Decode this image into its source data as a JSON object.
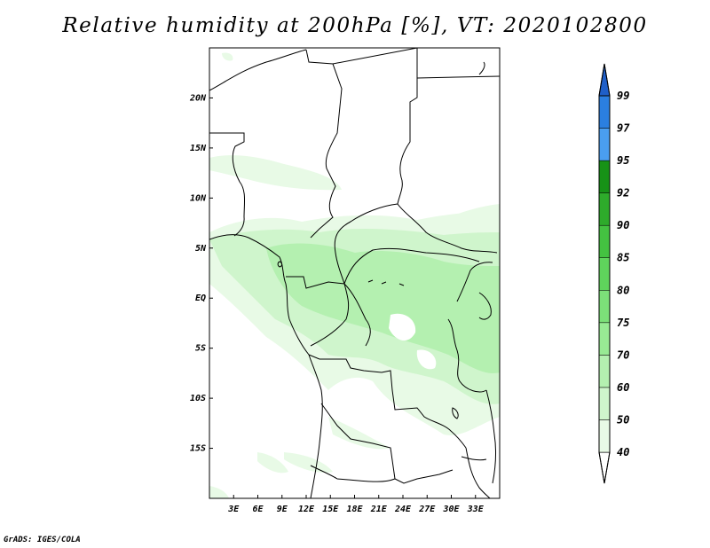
{
  "title": "Relative humidity at 200hPa [%], VT: 2020102800",
  "credit": "GrADS: IGES/COLA",
  "map": {
    "lon_range": [
      0,
      36
    ],
    "lat_range": [
      -20,
      25
    ],
    "x_ticks": [
      {
        "lon": 3,
        "label": "3E"
      },
      {
        "lon": 6,
        "label": "6E"
      },
      {
        "lon": 9,
        "label": "9E"
      },
      {
        "lon": 12,
        "label": "12E"
      },
      {
        "lon": 15,
        "label": "15E"
      },
      {
        "lon": 18,
        "label": "18E"
      },
      {
        "lon": 21,
        "label": "21E"
      },
      {
        "lon": 24,
        "label": "24E"
      },
      {
        "lon": 27,
        "label": "27E"
      },
      {
        "lon": 30,
        "label": "30E"
      },
      {
        "lon": 33,
        "label": "33E"
      }
    ],
    "y_ticks": [
      {
        "lat": 20,
        "label": "20N"
      },
      {
        "lat": 15,
        "label": "15N"
      },
      {
        "lat": 10,
        "label": "10N"
      },
      {
        "lat": 5,
        "label": "5N"
      },
      {
        "lat": 0,
        "label": "EQ"
      },
      {
        "lat": -5,
        "label": "5S"
      },
      {
        "lat": -10,
        "label": "10S"
      },
      {
        "lat": -15,
        "label": "15S"
      }
    ]
  },
  "colorbar": {
    "levels": [
      "40",
      "50",
      "60",
      "70",
      "75",
      "80",
      "85",
      "90",
      "92",
      "95",
      "97",
      "99"
    ],
    "colors": [
      "#ffffff",
      "#e8fae6",
      "#cff5cc",
      "#b4f0b0",
      "#98ea94",
      "#7ce079",
      "#5fd45c",
      "#44c241",
      "#2eab2b",
      "#179217",
      "#4a9ef0",
      "#2b7fe0",
      "#1f5fc8"
    ]
  },
  "colors": {
    "land_outline": "#000000",
    "rh_light": "#e8fae6",
    "rh_mid": "#cff5cc",
    "rh_high": "#b4f0b0"
  }
}
